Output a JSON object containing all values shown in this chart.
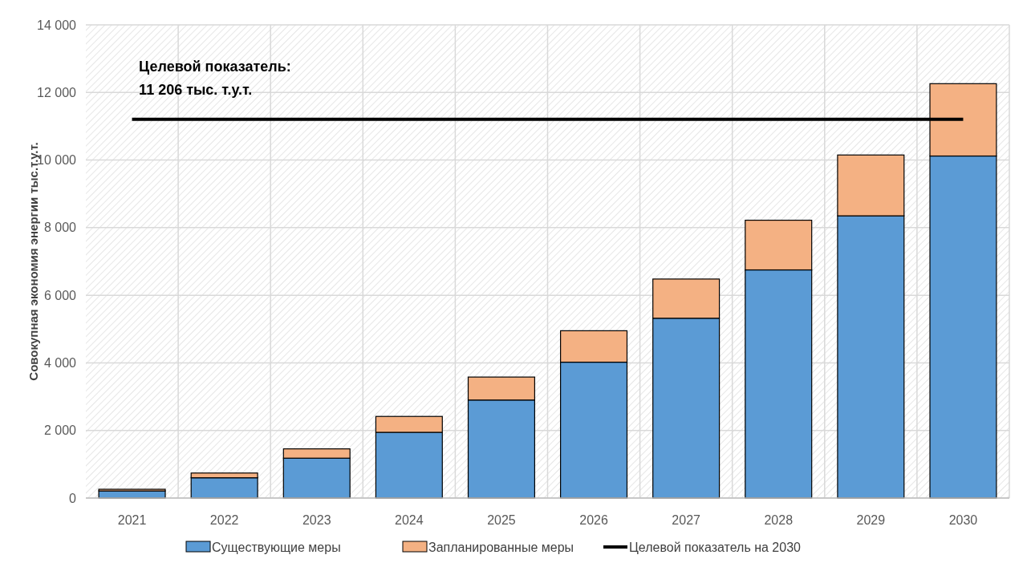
{
  "chart_data": {
    "type": "bar",
    "stacked": true,
    "ylabel": "Совокупная экономия энергии тыс.т.у.т.",
    "categories": [
      "2021",
      "2022",
      "2023",
      "2024",
      "2025",
      "2026",
      "2027",
      "2028",
      "2029",
      "2030"
    ],
    "series": [
      {
        "name": "Существующие меры",
        "color": "#5b9bd5",
        "values": [
          210,
          600,
          1180,
          1945,
          2900,
          4020,
          5320,
          6750,
          8350,
          10120
        ]
      },
      {
        "name": "Запланированные меры",
        "color": "#f4b183",
        "values": [
          50,
          140,
          275,
          470,
          680,
          930,
          1160,
          1470,
          1800,
          2140
        ]
      },
      {
        "name": "Целевой показатель на 2030",
        "type": "line",
        "color": "#000000",
        "values": [
          11206,
          11206,
          11206,
          11206,
          11206,
          11206,
          11206,
          11206,
          11206,
          11206
        ]
      }
    ],
    "annotations": [
      {
        "text": "Целевой показатель:\n11 206 тыс. т.у.т.",
        "x": "2021",
        "y": 11206
      }
    ],
    "ylim": [
      0,
      14000
    ],
    "yticks": [
      {
        "value": 0,
        "label": "0"
      },
      {
        "value": 2000,
        "label": "2 000"
      },
      {
        "value": 4000,
        "label": "4 000"
      },
      {
        "value": 6000,
        "label": "6 000"
      },
      {
        "value": 8000,
        "label": "8 000"
      },
      {
        "value": 10000,
        "label": "10 000"
      },
      {
        "value": 12000,
        "label": "12 000"
      },
      {
        "value": 14000,
        "label": "14 000"
      }
    ],
    "grid": true,
    "legend": "bottom",
    "marker": "none",
    "line_style": "solid"
  }
}
